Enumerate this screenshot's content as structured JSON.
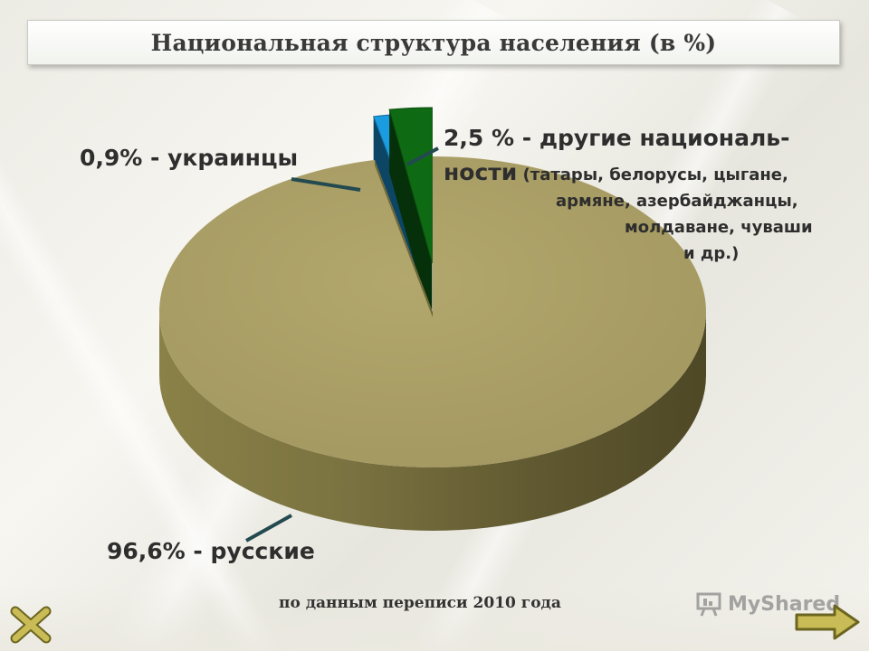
{
  "title": "Национальная структура населения (в %)",
  "chart_data": {
    "type": "pie",
    "style": "3d-exploded",
    "title": "Национальная структура населения (в %)",
    "slices": [
      {
        "label": "96,6% - русские",
        "name": "русские",
        "value": 96.6,
        "color": "#ABA066"
      },
      {
        "label": "0,9% - украинцы",
        "name": "украинцы",
        "value": 0.9,
        "color": "#1C9CE0"
      },
      {
        "label": "2,5 % - другие националь-ности (татары, белорусы, цыгане, армяне, азербайджанцы, молдаване, чуваши и др.)",
        "name": "другие национальности",
        "value": 2.5,
        "color": "#0E6B14"
      }
    ]
  },
  "labels": {
    "ukr": "0,9% - украинцы",
    "rus": "96,6% - русские",
    "other_line1": "2,5 % - другие националь-",
    "other_line2_big": "ности",
    "other_line2_small": " (татары, белорусы, цыгане,",
    "other_line3": "армяне, азербайджанцы,",
    "other_line4": "молдаване, чуваши",
    "other_line5": "и др.)"
  },
  "source": "по данным переписи 2010 года",
  "brand": "MyShared"
}
